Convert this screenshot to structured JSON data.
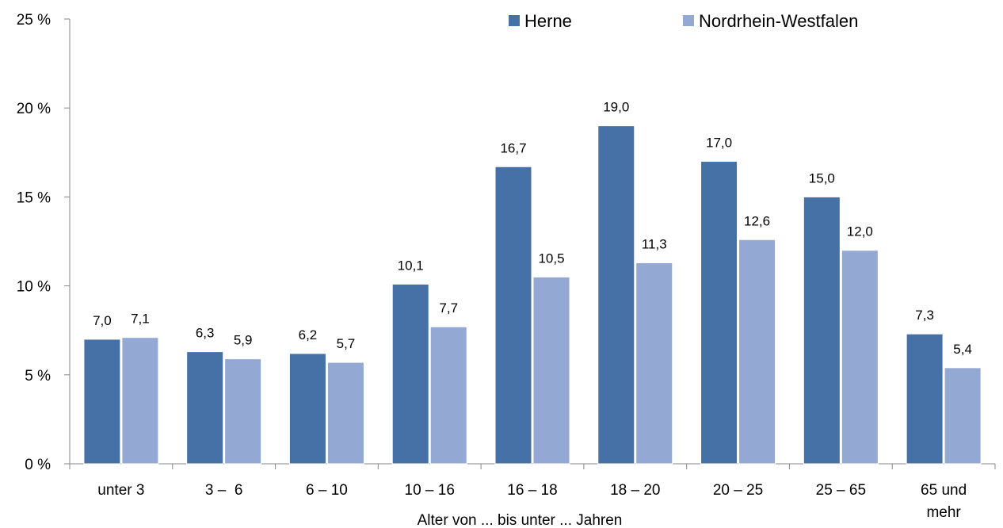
{
  "chart_data": {
    "type": "bar",
    "categories": [
      "unter 3",
      "3 –  6",
      "6 – 10",
      "10 – 16",
      "16 – 18",
      "18 – 20",
      "20 – 25",
      "25 – 65",
      "65 und mehr"
    ],
    "series": [
      {
        "name": "Herne",
        "color": "#4571A6",
        "values": [
          7.0,
          6.3,
          6.2,
          10.1,
          16.7,
          19.0,
          17.0,
          15.0,
          7.3
        ],
        "labels": [
          "7,0",
          "6,3",
          "6,2",
          "10,1",
          "16,7",
          "19,0",
          "17,0",
          "15,0",
          "7,3"
        ]
      },
      {
        "name": "Nordrhein-Westfalen",
        "color": "#93A8D3",
        "values": [
          7.1,
          5.9,
          5.7,
          7.7,
          10.5,
          11.3,
          12.6,
          12.0,
          5.4
        ],
        "labels": [
          "7,1",
          "5,9",
          "5,7",
          "7,7",
          "10,5",
          "11,3",
          "12,6",
          "12,0",
          "5,4"
        ]
      }
    ],
    "xlabel": "Alter von ... bis unter ... Jahren",
    "ylabel": "",
    "ylim": [
      0,
      25
    ],
    "yticks": [
      0,
      5,
      10,
      15,
      20,
      25
    ],
    "ytick_labels": [
      "0 %",
      "5 %",
      "10 %",
      "15 %",
      "20 %",
      "25 %"
    ],
    "legend_position": "top-right",
    "grid": false
  }
}
